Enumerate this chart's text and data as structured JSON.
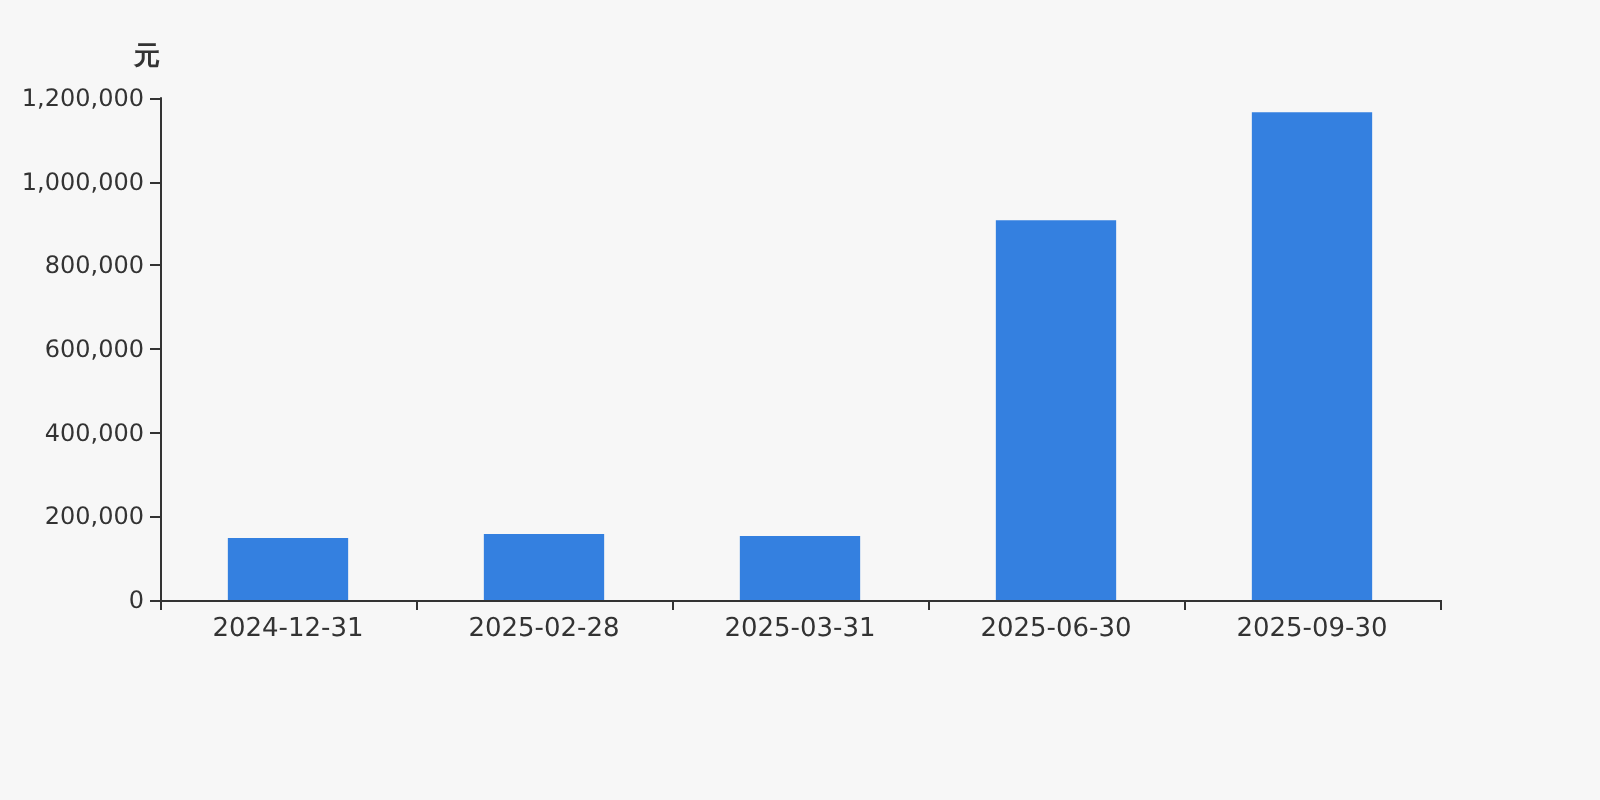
{
  "chart_data": {
    "type": "bar",
    "ylabel": "元",
    "categories": [
      "2024-12-31",
      "2025-02-28",
      "2025-03-31",
      "2025-06-30",
      "2025-09-30"
    ],
    "values": [
      148000,
      158000,
      153000,
      908000,
      1166000
    ],
    "color": "#3480e0",
    "ylim": [
      0,
      1200000
    ],
    "yticks": [
      0,
      {
        "value": 200000,
        "label": "200,000"
      },
      {
        "value": 400000,
        "label": "400,000"
      },
      {
        "value": 600000,
        "label": "600,000"
      },
      {
        "value": 800000,
        "label": "800,000"
      },
      {
        "value": 1000000,
        "label": "1,000,000"
      },
      {
        "value": 1200000,
        "label": "1,200,000"
      }
    ],
    "grid": false
  }
}
